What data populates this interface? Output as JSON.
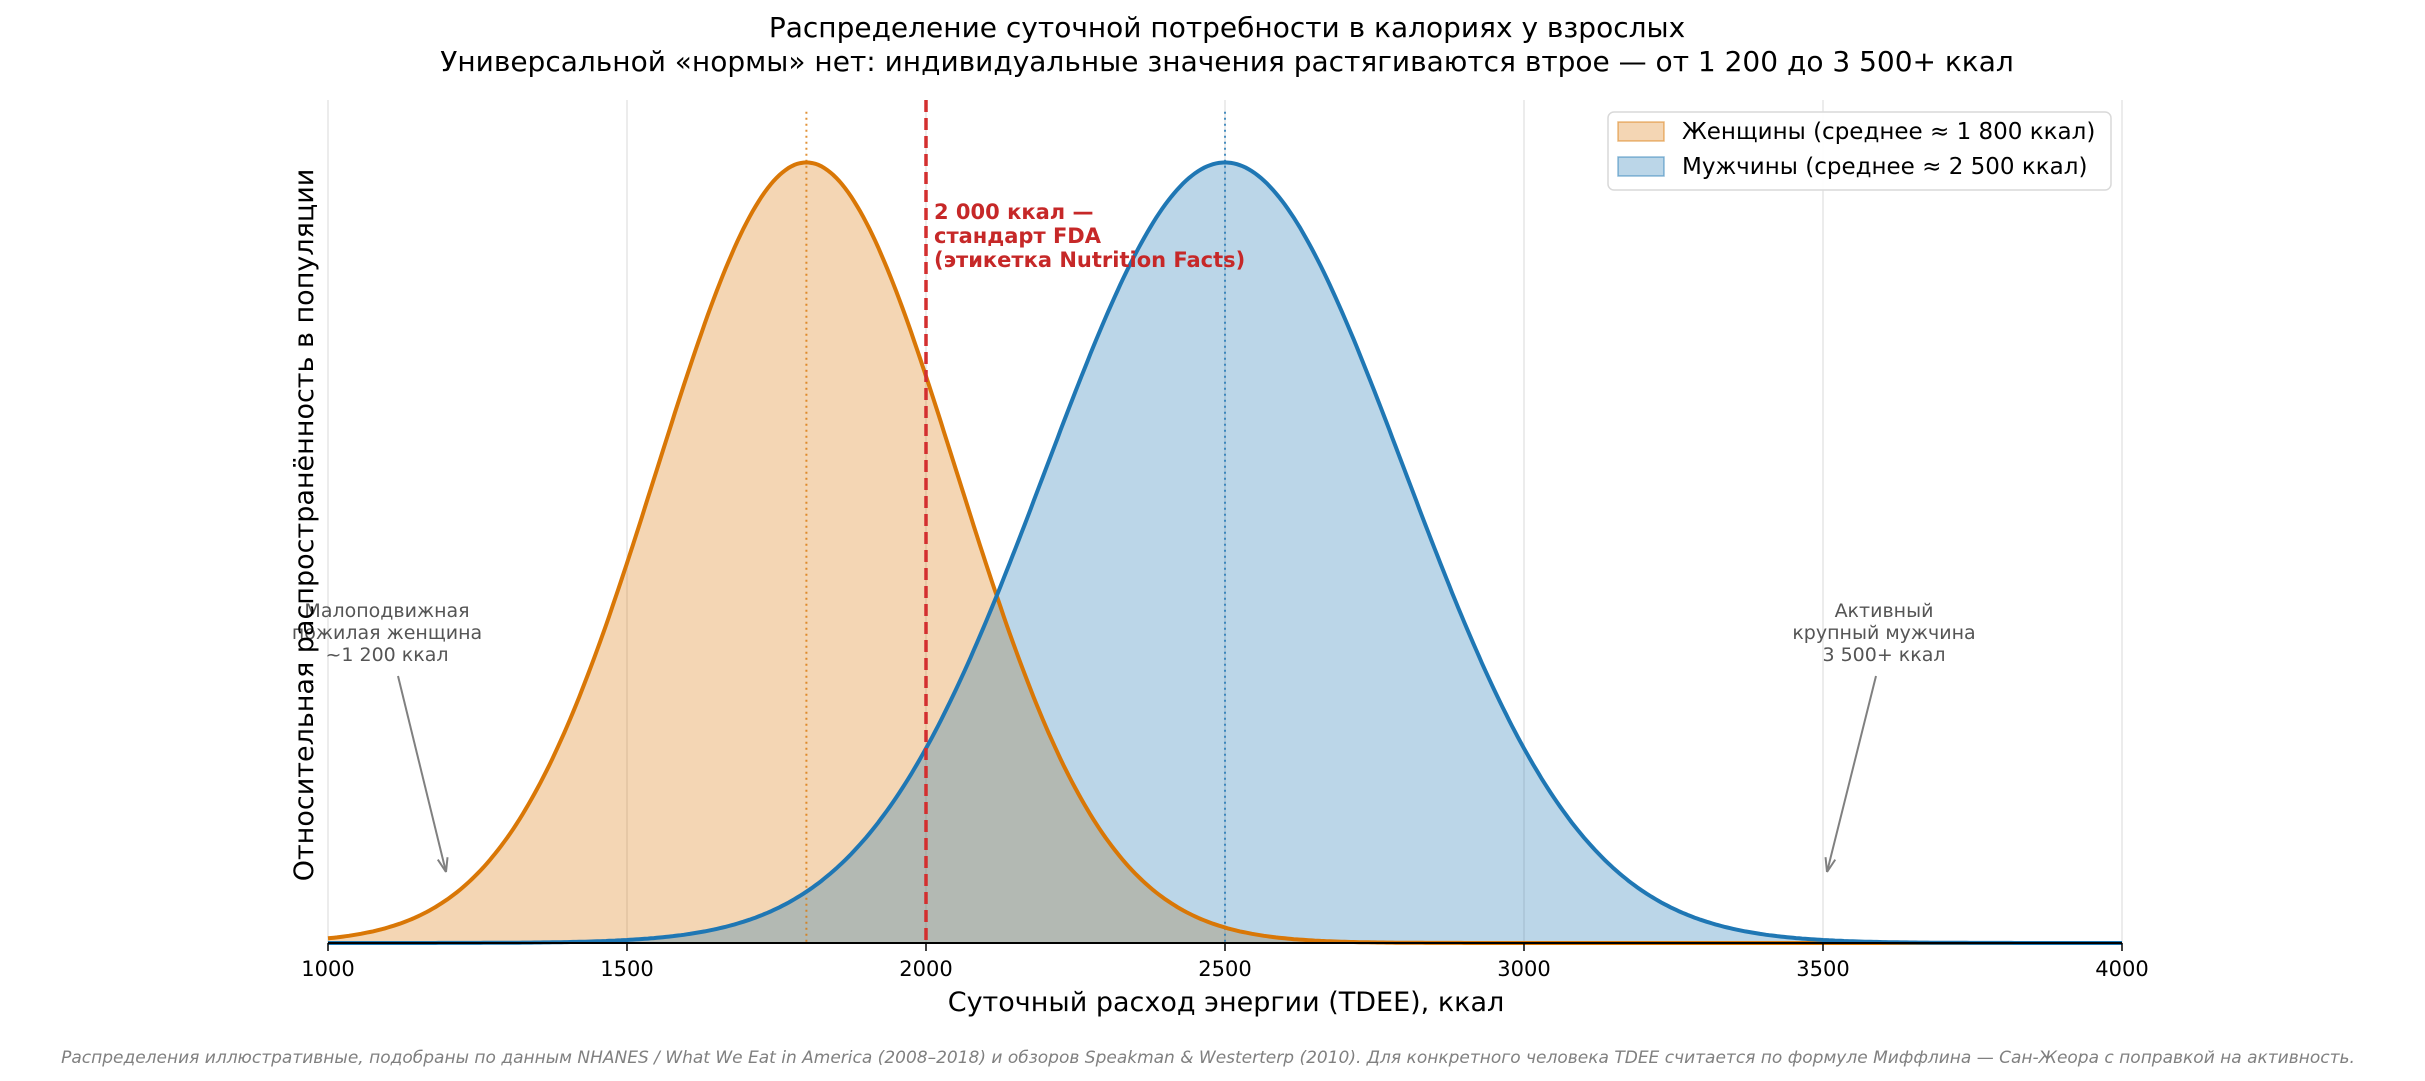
{
  "chart_data": {
    "type": "area",
    "title": "Распределение суточной потребности в калориях у взрослых",
    "subtitle": "Универсальной «нормы» нет: индивидуальные значения растягиваются втрое — от 1 200 до 3 500+ ккал",
    "xlabel": "Суточный расход энергии (TDEE), ккал",
    "ylabel": "Относительная распространённость в популяции",
    "xlim": [
      1000,
      4000
    ],
    "ylim": [
      0,
      1.08
    ],
    "x_ticks": [
      1000,
      1500,
      2000,
      2500,
      3000,
      3500,
      4000
    ],
    "x_tick_labels": [
      "1000",
      "1500",
      "2000",
      "2500",
      "3000",
      "3500",
      "4000"
    ],
    "grid": "vertical",
    "legend_position": "top-right",
    "series": [
      {
        "name": "Женщины (среднее ≈ 1 800 ккал)",
        "mean": 1800,
        "sd": 250,
        "peak": 1.0,
        "color": "#d97706",
        "fill": "#f3d3b0"
      },
      {
        "name": "Мужчины (среднее ≈ 2 500 ккал)",
        "mean": 2500,
        "sd": 300,
        "peak": 1.0,
        "color": "#1f77b4",
        "fill": "#b8d4e9"
      }
    ],
    "reference_line": {
      "x": 2000,
      "color": "#d32f2f",
      "label_lines": [
        "2 000 ккал —",
        "стандарт FDA",
        "(этикетка Nutrition Facts)"
      ]
    },
    "annotations": [
      {
        "text_lines": [
          "Малоподвижная",
          "пожилая женщина",
          "~1 200 ккал"
        ],
        "x": 1200
      },
      {
        "text_lines": [
          "Активный",
          "крупный мужчина",
          "3 500+ ккал"
        ],
        "x": 3500
      }
    ]
  },
  "footnote": "Распределения иллюстративные, подобраны по данным NHANES / What We Eat in America (2008–2018) и обзоров Speakman & Westerterp (2010). Для конкретного человека TDEE считается по формуле Миффлина — Сан-Жеора с поправкой на активность."
}
